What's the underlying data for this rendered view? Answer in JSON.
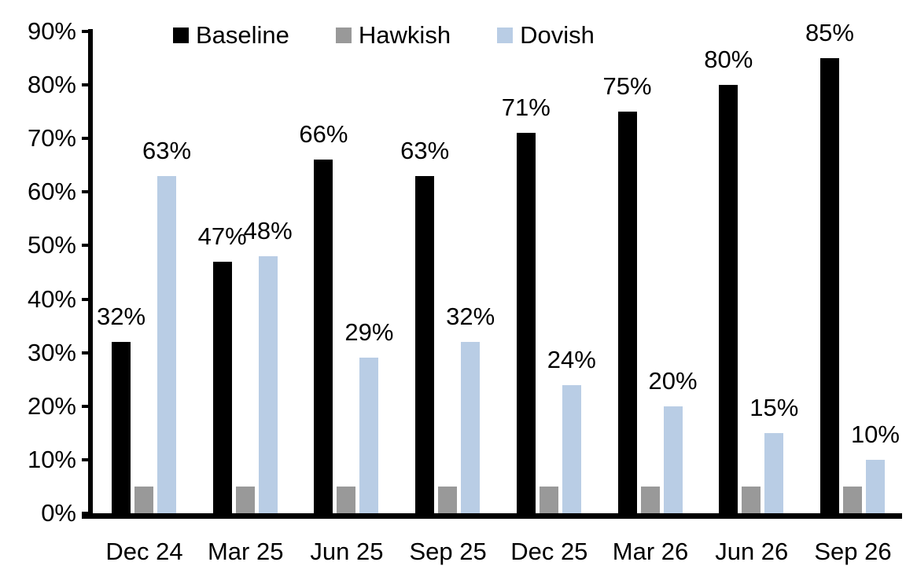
{
  "chart_data": {
    "type": "bar",
    "title": "",
    "xlabel": "",
    "ylabel": "",
    "categories": [
      "Dec 24",
      "Mar 25",
      "Jun 25",
      "Sep 25",
      "Dec 25",
      "Mar 26",
      "Jun 26",
      "Sep 26"
    ],
    "series": [
      {
        "name": "Baseline",
        "color": "#000000",
        "values": [
          32,
          47,
          66,
          63,
          71,
          75,
          80,
          85
        ],
        "data_labels": [
          "32%",
          "47%",
          "66%",
          "63%",
          "71%",
          "75%",
          "80%",
          "85%"
        ]
      },
      {
        "name": "Hawkish",
        "color": "#999999",
        "values": [
          5,
          5,
          5,
          5,
          5,
          5,
          5,
          5
        ],
        "data_labels": [
          "",
          "",
          "",
          "",
          "",
          "",
          "",
          ""
        ]
      },
      {
        "name": "Dovish",
        "color": "#b9cde5",
        "values": [
          63,
          48,
          29,
          32,
          24,
          20,
          15,
          10
        ],
        "data_labels": [
          "63%",
          "48%",
          "29%",
          "32%",
          "24%",
          "20%",
          "15%",
          "10%"
        ]
      }
    ],
    "ylim": [
      0,
      90
    ],
    "ytick_step": 10,
    "ytick_labels": [
      "0%",
      "10%",
      "20%",
      "30%",
      "40%",
      "50%",
      "60%",
      "70%",
      "80%",
      "90%"
    ],
    "legend_position": "top",
    "grid": false,
    "axis_color": "#000000",
    "text_color": "#000000"
  }
}
